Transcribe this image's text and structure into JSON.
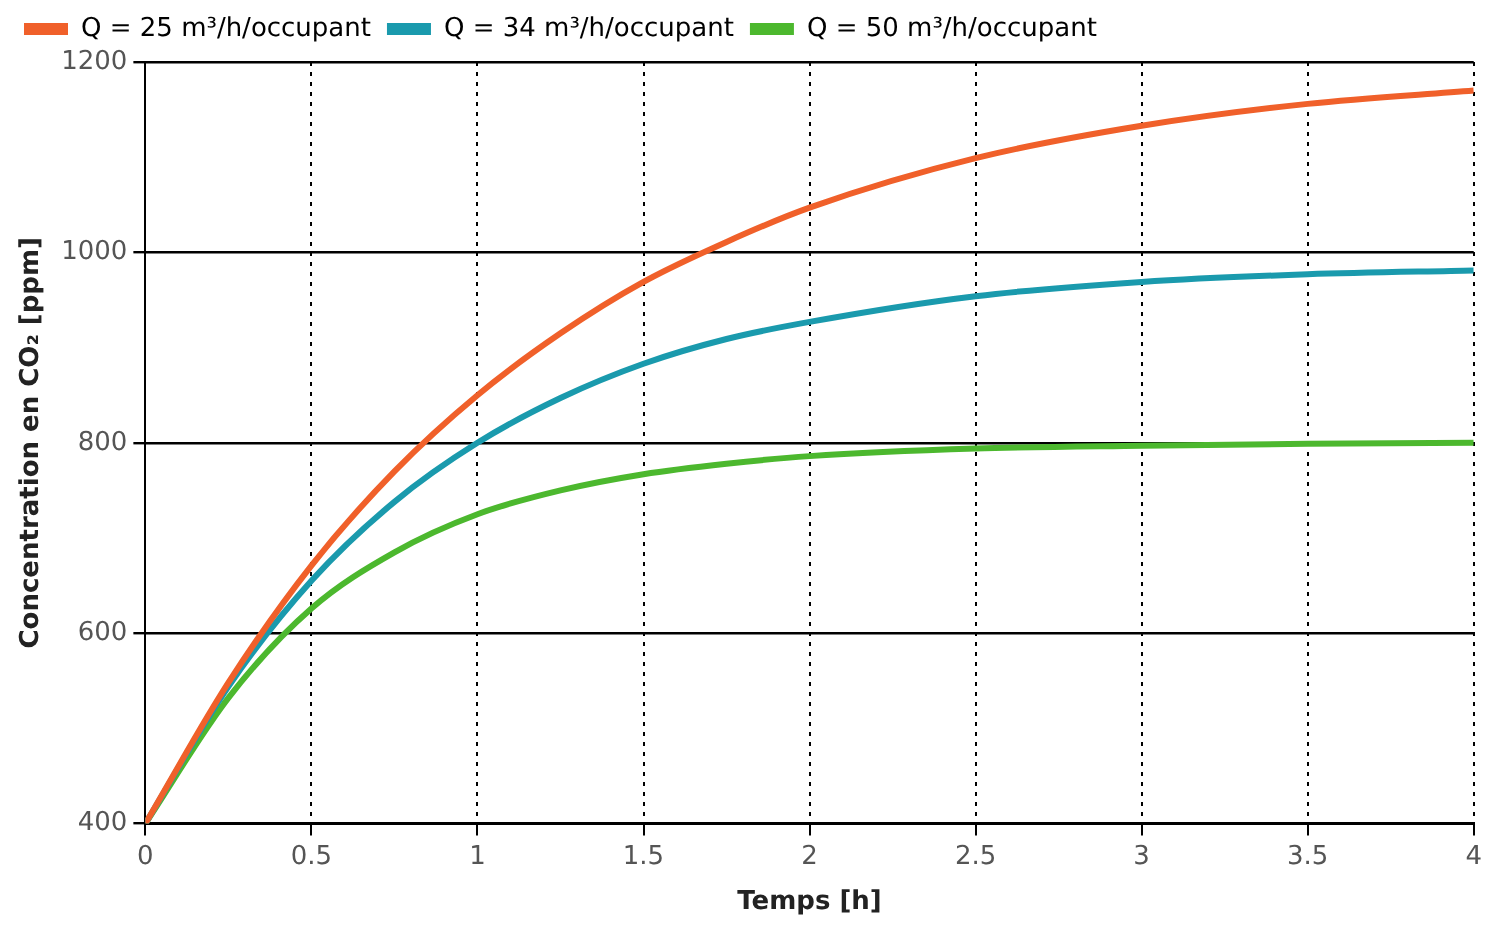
{
  "chart_data": {
    "type": "line",
    "xlabel": "Temps [h]",
    "ylabel": "Concentration en CO₂ [ppm]",
    "x": [
      0,
      0.25,
      0.5,
      0.75,
      1,
      1.25,
      1.5,
      1.75,
      2,
      2.5,
      3,
      3.5,
      4
    ],
    "series": [
      {
        "name": "Q = 25 m³/h/occupant",
        "color": "#f0602a",
        "values": [
          400,
          548,
          671,
          770,
          850,
          915,
          969,
          1011,
          1047,
          1099,
          1133,
          1156,
          1170
        ]
      },
      {
        "name": "Q = 34 m³/h/occupant",
        "color": "#1a9aad",
        "values": [
          400,
          544,
          655,
          738,
          800,
          847,
          883,
          909,
          927,
          954,
          969,
          977,
          981
        ]
      },
      {
        "name": "Q = 50 m³/h/occupant",
        "color": "#4cb82e",
        "values": [
          400,
          532,
          626,
          685,
          725,
          750,
          767,
          778,
          786,
          794,
          797,
          799,
          800
        ]
      }
    ],
    "xlim": [
      0,
      4
    ],
    "xticks": [
      0,
      0.5,
      1,
      1.5,
      2,
      2.5,
      3,
      3.5,
      4
    ],
    "ylim": [
      400,
      1200
    ],
    "yticks": [
      400,
      600,
      800,
      1000,
      1200
    ],
    "grid": true,
    "legend": "top left",
    "marker": "none",
    "line_style": "solid"
  }
}
